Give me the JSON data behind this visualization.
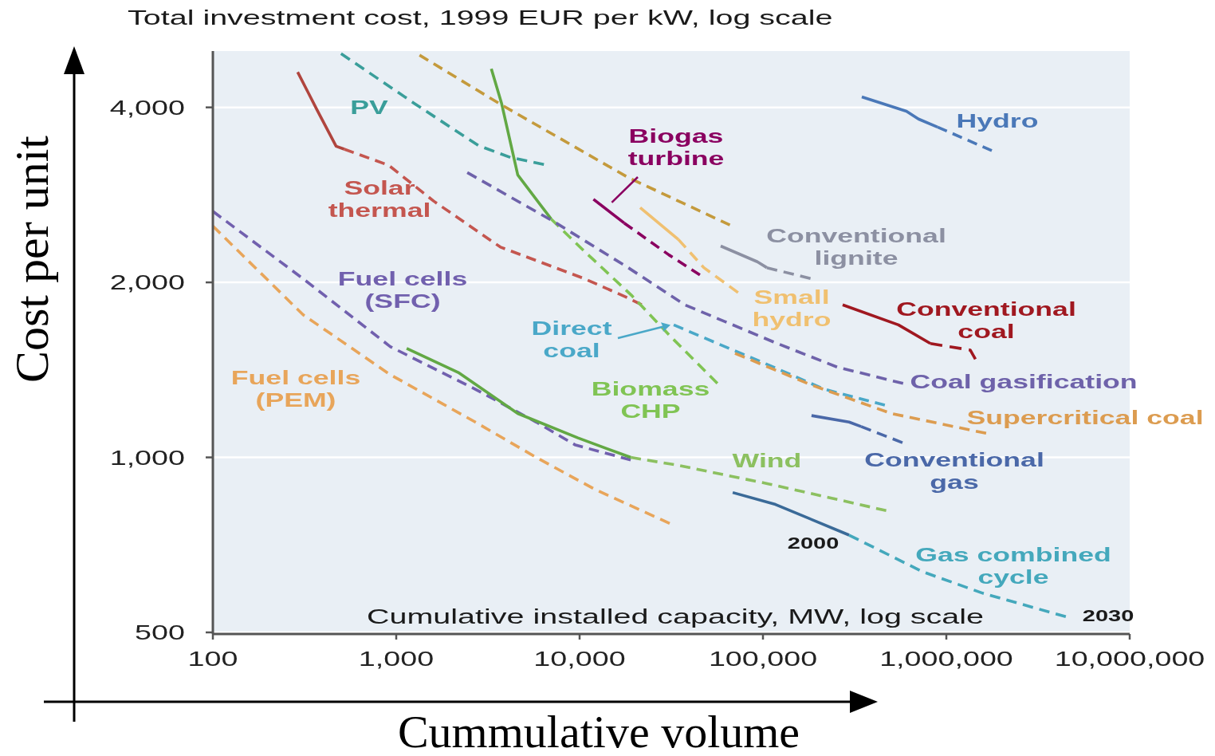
{
  "chart_data": {
    "type": "line",
    "title": "Total investment cost, 1999 EUR per kW, log scale",
    "xlabel": "Cummulative volume",
    "ylabel": "Cost per unit",
    "annotations": [
      "Cumulative installed capacity, MW, log scale",
      {
        "text": "2000",
        "x": 295000,
        "y": 735
      },
      {
        "text": "2030",
        "x": 4490000,
        "y": 532
      }
    ],
    "log": "xy",
    "grid": "y",
    "xlim": [
      100,
      10000000
    ],
    "ylim": [
      500,
      5000
    ],
    "xticks": [
      100,
      {
        "value": 1000,
        "label": "1,000"
      },
      {
        "value": 10000,
        "label": "10,000"
      },
      {
        "value": 100000,
        "label": "100,000"
      },
      {
        "value": 1000000,
        "label": "1,000,000"
      },
      {
        "value": 10000000,
        "label": "10,000,000"
      }
    ],
    "yticks": [
      500,
      {
        "value": 1000,
        "label": "1,000"
      },
      {
        "value": 2000,
        "label": "2,000"
      },
      {
        "value": 4000,
        "label": "4,000"
      }
    ],
    "series": [
      {
        "name": "PV",
        "color": "#3a9e9a",
        "line_style": "dashed",
        "x": [
          500,
          1260,
          2800,
          4200,
          6400
        ],
        "values": [
          4950,
          4060,
          3440,
          3280,
          3190
        ]
      },
      {
        "color": "#b0453e",
        "line_style": "solid",
        "x": [
          290,
          330,
          370,
          470,
          520
        ],
        "values": [
          4600,
          4250,
          3960,
          3430,
          3390
        ]
      },
      {
        "name": "Solar thermal",
        "color": "#c4564f",
        "line_style": "dashed",
        "x": [
          520,
          910,
          1600,
          3700,
          10600,
          18400,
          21800
        ],
        "values": [
          3390,
          3180,
          2760,
          2300,
          2030,
          1880,
          1830
        ]
      },
      {
        "name": "Fuel cells (SFC)",
        "color": "#7160ae",
        "line_style": "dashed",
        "x": [
          100,
          310,
          930,
          2700,
          5800,
          9500,
          19000
        ],
        "values": [
          2650,
          2030,
          1550,
          1310,
          1150,
          1050,
          990
        ]
      },
      {
        "name": "Fuel cells (PEM)",
        "color": "#e8a55a",
        "line_style": "dashed",
        "x": [
          100,
          310,
          920,
          2700,
          5800,
          12200,
          31000
        ],
        "values": [
          2500,
          1760,
          1390,
          1150,
          1000,
          880,
          770
        ]
      },
      {
        "color": "#62a844",
        "line_style": "solid",
        "x": [
          1140,
          2180,
          4600,
          9800,
          19000
        ],
        "values": [
          1540,
          1400,
          1190,
          1080,
          1000
        ]
      },
      {
        "name": "Wind",
        "color": "#8cc060",
        "line_style": "dashed",
        "x": [
          19000,
          34000,
          108000,
          470000
        ],
        "values": [
          1000,
          970,
          900,
          810
        ]
      },
      {
        "color": "#62a844",
        "line_style": "solid",
        "x": [
          3300,
          3750,
          4600,
          7000
        ],
        "values": [
          4660,
          4070,
          3060,
          2570
        ]
      },
      {
        "name": "Biomass CHP",
        "color": "#80c454",
        "line_style": "dashed",
        "x": [
          7000,
          10500,
          19200,
          31000,
          56500
        ],
        "values": [
          2570,
          2270,
          1900,
          1620,
          1340
        ]
      },
      {
        "color": "#c49a3c",
        "line_style": "dashed",
        "x": [
          1340,
          3750,
          18400,
          66000
        ],
        "values": [
          4920,
          4040,
          3030,
          2510
        ]
      },
      {
        "name": "Coal gasification",
        "color": "#6e62aa",
        "line_style": "dashed",
        "x": [
          2440,
          7300,
          18400,
          37500,
          114000,
          254000,
          582000
        ],
        "values": [
          3090,
          2540,
          2120,
          1830,
          1580,
          1430,
          1340
        ]
      },
      {
        "name": "Biogas turbine",
        "color": "#8a0060",
        "line_style": "solid",
        "x": [
          11900,
          17500
        ],
        "values": [
          2780,
          2530
        ]
      },
      {
        "color": "#8a0060",
        "line_style": "dashed",
        "x": [
          17500,
          30700,
          45300
        ],
        "values": [
          2530,
          2230,
          2060
        ]
      },
      {
        "name": "Small hydro",
        "color": "#f0c070",
        "line_style": "solid",
        "x": [
          21400,
          34600
        ],
        "values": [
          2690,
          2370
        ]
      },
      {
        "color": "#f0c070",
        "line_style": "dashed",
        "x": [
          34600,
          47600,
          73300
        ],
        "values": [
          2370,
          2120,
          1920
        ]
      },
      {
        "name": "Conventional lignite",
        "color": "#8c90a2",
        "line_style": "solid",
        "x": [
          58800,
          93200,
          105000
        ],
        "values": [
          2310,
          2170,
          2120
        ]
      },
      {
        "color": "#8c90a2",
        "line_style": "dashed",
        "x": [
          105000,
          182000
        ],
        "values": [
          2120,
          2030
        ]
      },
      {
        "name": "Hydro",
        "color": "#4a78b8",
        "line_style": "solid",
        "x": [
          346000,
          606000,
          705000,
          896000
        ],
        "values": [
          4170,
          3940,
          3820,
          3700
        ]
      },
      {
        "color": "#4a78b8",
        "line_style": "dashed",
        "x": [
          896000,
          1770000
        ],
        "values": [
          3700,
          3370
        ]
      },
      {
        "name": "Conventional coal",
        "color": "#a01820",
        "line_style": "solid",
        "x": [
          272000,
          548000,
          819000
        ],
        "values": [
          1830,
          1690,
          1570
        ]
      },
      {
        "color": "#a01820",
        "line_style": "dashed",
        "x": [
          819000,
          1350000,
          1450000
        ],
        "values": [
          1570,
          1530,
          1470
        ]
      },
      {
        "name": "Direct coal",
        "color": "#4aa8c8",
        "line_style": "dashed",
        "x": [
          32600,
          56500,
          103000,
          216000,
          462000
        ],
        "values": [
          1690,
          1570,
          1450,
          1310,
          1230
        ]
      },
      {
        "name": "Supercritical coal",
        "color": "#dc9c50",
        "line_style": "dashed",
        "x": [
          70400,
          186000,
          501000,
          1650000
        ],
        "values": [
          1510,
          1330,
          1190,
          1100
        ]
      },
      {
        "name": "Conventional gas",
        "color": "#4a68a8",
        "line_style": "solid",
        "x": [
          184000,
          295000,
          343000
        ],
        "values": [
          1180,
          1150,
          1130
        ]
      },
      {
        "color": "#4a68a8",
        "line_style": "dashed",
        "x": [
          343000,
          577000
        ],
        "values": [
          1130,
          1060
        ]
      },
      {
        "color": "#3a6a98",
        "line_style": "solid",
        "x": [
          68400,
          117000,
          295000
        ],
        "values": [
          870,
          830,
          735
        ]
      },
      {
        "name": "Gas combined cycle",
        "color": "#44a8bc",
        "line_style": "dashed",
        "x": [
          295000,
          741000,
          1580000,
          4490000
        ],
        "values": [
          735,
          636,
          584,
          532
        ]
      }
    ]
  }
}
